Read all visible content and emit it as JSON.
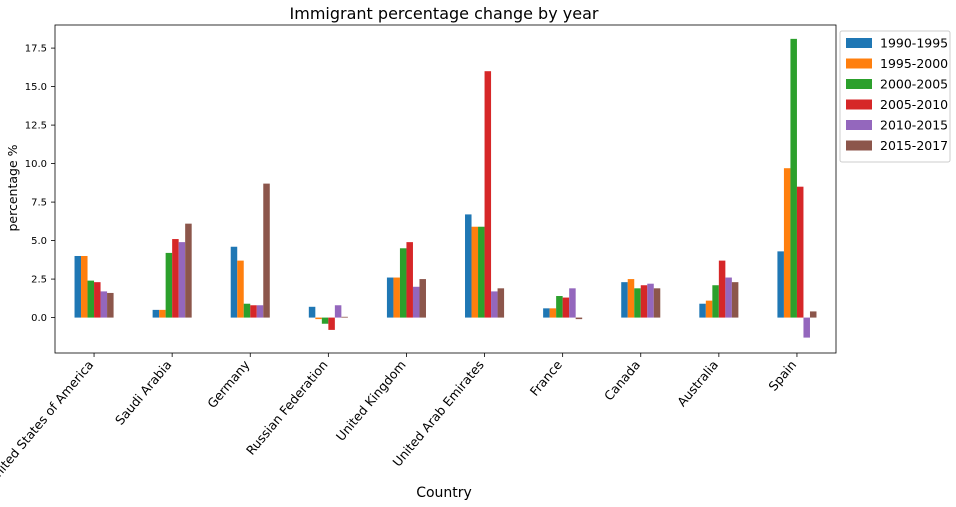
{
  "chart_data": {
    "type": "bar",
    "title": "Immigrant percentage change by year",
    "xlabel": "Country",
    "ylabel": "percentage %",
    "ylim": [
      -2.3,
      19.0
    ],
    "yticks": [
      "0.0",
      "2.5",
      "5.0",
      "7.5",
      "10.0",
      "12.5",
      "15.0",
      "17.5"
    ],
    "grid": false,
    "legend_position": "outside-top-right",
    "categories": [
      "United States of America",
      "Saudi Arabia",
      "Germany",
      "Russian Federation",
      "United Kingdom",
      "United Arab Emirates",
      "France",
      "Canada",
      "Australia",
      "Spain"
    ],
    "series": [
      {
        "name": "1990-1995",
        "color": "#1f77b4",
        "values": [
          4.0,
          0.5,
          4.6,
          0.7,
          2.6,
          6.7,
          0.6,
          2.3,
          0.9,
          4.3
        ]
      },
      {
        "name": "1995-2000",
        "color": "#ff7f0e",
        "values": [
          4.0,
          0.5,
          3.7,
          -0.1,
          2.6,
          5.9,
          0.6,
          2.5,
          1.1,
          9.7
        ]
      },
      {
        "name": "2000-2005",
        "color": "#2ca02c",
        "values": [
          2.4,
          4.2,
          0.9,
          -0.4,
          4.5,
          5.9,
          1.4,
          1.9,
          2.1,
          18.1
        ]
      },
      {
        "name": "2005-2010",
        "color": "#d62728",
        "values": [
          2.3,
          5.1,
          0.8,
          -0.8,
          4.9,
          16.0,
          1.3,
          2.1,
          3.7,
          8.5
        ]
      },
      {
        "name": "2010-2015",
        "color": "#9467bd",
        "values": [
          1.7,
          4.9,
          0.8,
          0.8,
          2.0,
          1.7,
          1.9,
          2.2,
          2.6,
          -1.3
        ]
      },
      {
        "name": "2015-2017",
        "color": "#8c564b",
        "values": [
          1.6,
          6.1,
          8.7,
          0.05,
          2.5,
          1.9,
          -0.1,
          1.9,
          2.3,
          0.4
        ]
      }
    ]
  }
}
